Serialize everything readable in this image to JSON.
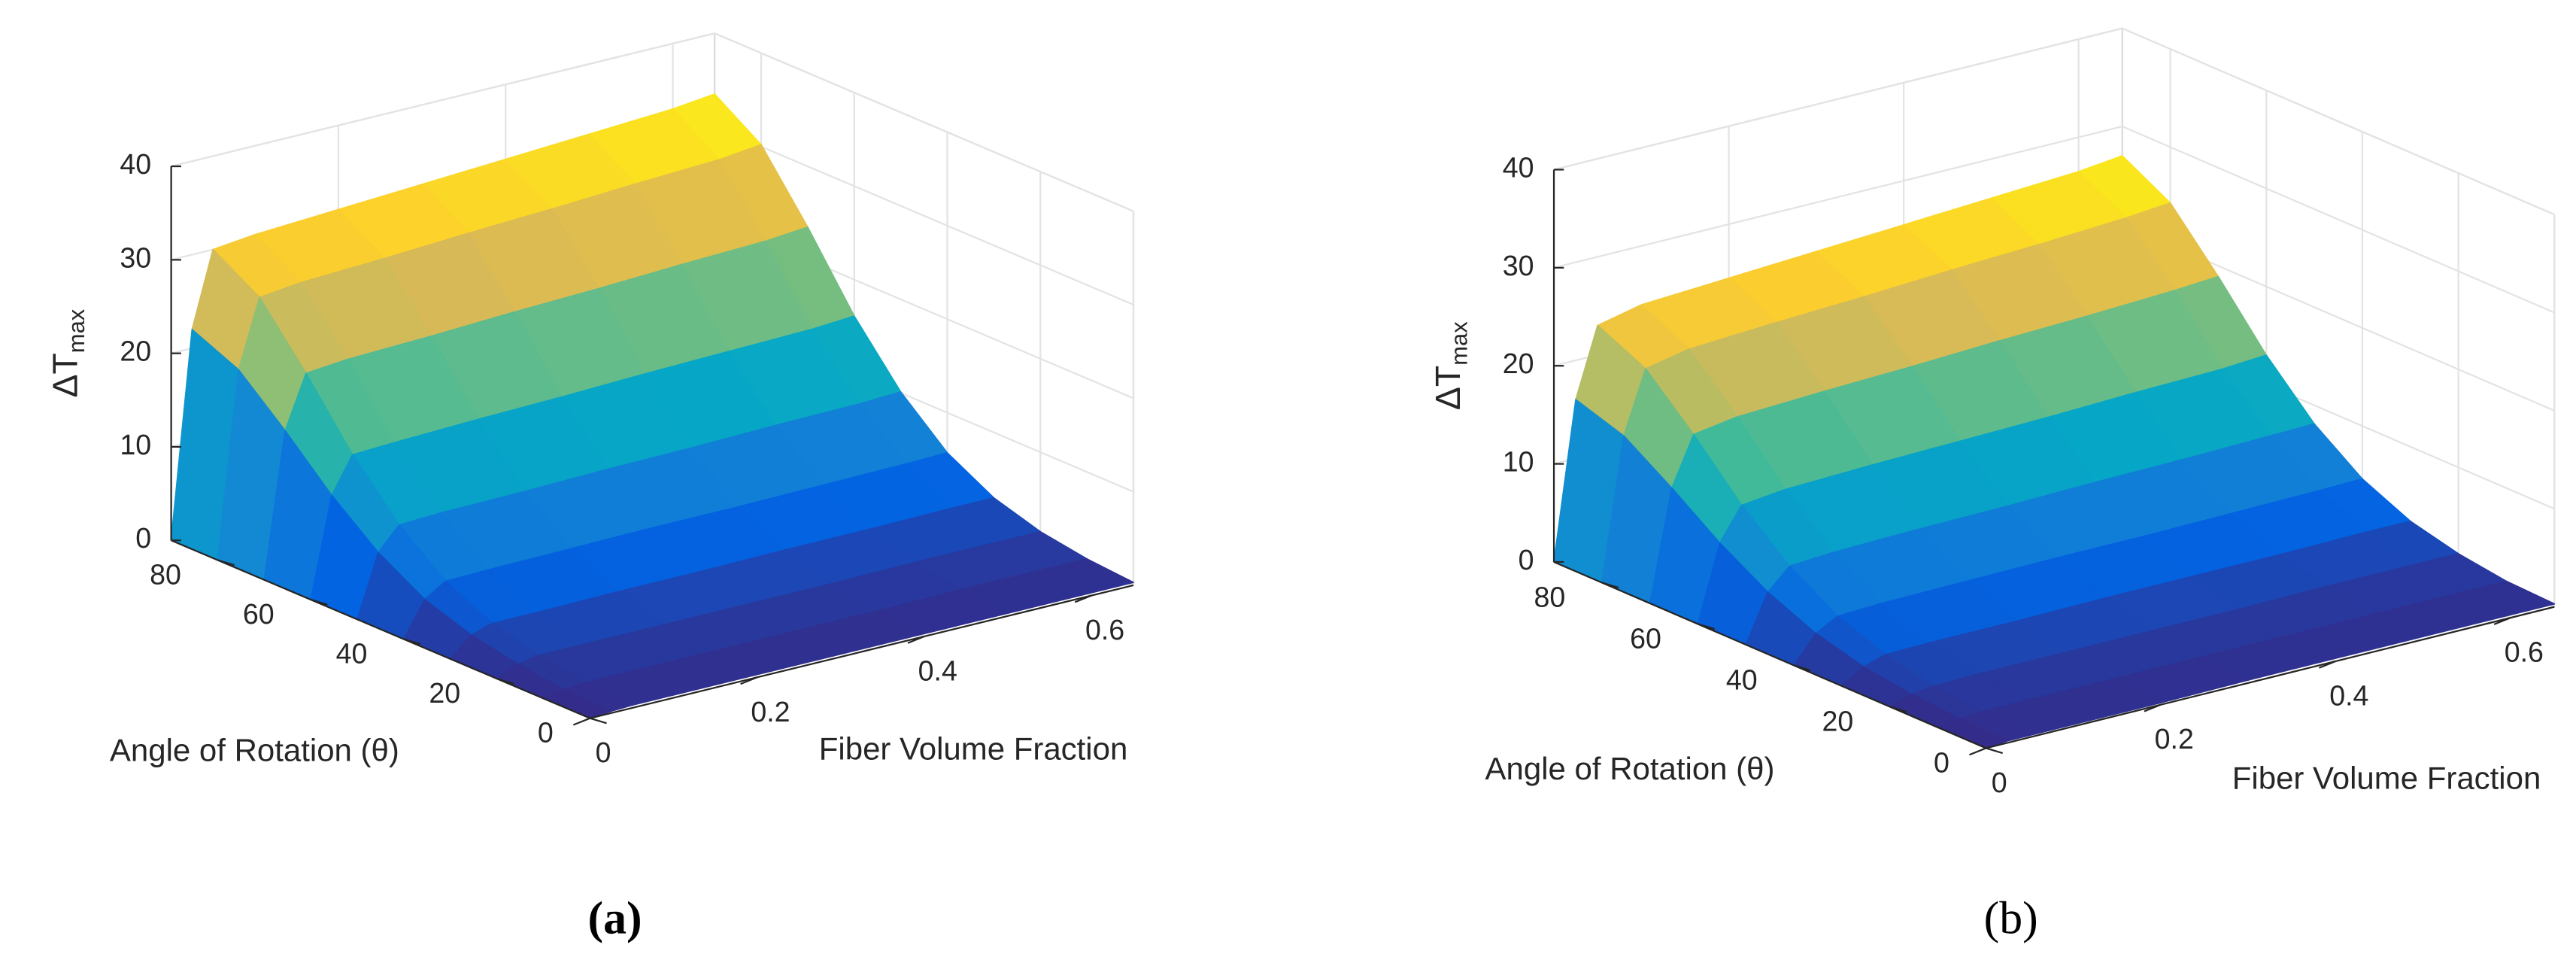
{
  "chart_data": [
    {
      "type": "surface",
      "panel_label": "(a)",
      "xlabel": "Fiber Volume Fraction",
      "ylabel": "Angle of Rotation (θ)",
      "zlabel": "ΔT",
      "zlabel_sub": "max",
      "x": [
        0,
        0.025,
        0.05,
        0.1,
        0.2,
        0.3,
        0.4,
        0.5,
        0.6,
        0.65
      ],
      "y": [
        0,
        10,
        20,
        30,
        40,
        50,
        60,
        70,
        80,
        90
      ],
      "z": [
        [
          0,
          0.2,
          0.3,
          0.3,
          0.3,
          0.3,
          0.3,
          0.3,
          0.3,
          0.3
        ],
        [
          0,
          0.4,
          0.6,
          0.6,
          0.6,
          0.6,
          0.6,
          0.7,
          0.7,
          0.7
        ],
        [
          0,
          1.0,
          1.4,
          1.4,
          1.4,
          1.4,
          1.4,
          1.5,
          1.5,
          1.5
        ],
        [
          0,
          2.0,
          2.7,
          2.7,
          2.8,
          2.8,
          2.9,
          2.9,
          3.0,
          3.0
        ],
        [
          0,
          3.7,
          5.1,
          5.2,
          5.3,
          5.4,
          5.4,
          5.5,
          5.6,
          5.7
        ],
        [
          0,
          6.6,
          9.0,
          9.2,
          9.3,
          9.5,
          9.6,
          9.8,
          9.9,
          10.1
        ],
        [
          0,
          10.6,
          14.4,
          14.6,
          14.9,
          15.1,
          15.4,
          15.6,
          15.8,
          16.1
        ],
        [
          0,
          15.4,
          21.0,
          21.4,
          21.7,
          22.1,
          22.4,
          22.8,
          23.1,
          23.5
        ],
        [
          0,
          19.8,
          27.0,
          27.5,
          27.9,
          28.4,
          28.8,
          29.3,
          29.7,
          30.2
        ],
        [
          0,
          22,
          30,
          30.5,
          31,
          31.5,
          32,
          32.5,
          33,
          33.5
        ]
      ],
      "xlim": [
        0,
        0.65
      ],
      "ylim": [
        0,
        90
      ],
      "zlim": [
        0,
        40
      ],
      "xticks": [
        0,
        0.2,
        0.4,
        0.6
      ],
      "yticks": [
        0,
        20,
        40,
        60,
        80
      ],
      "zticks": [
        0,
        10,
        20,
        30,
        40
      ],
      "grid": true,
      "colormap": [
        "#352a87",
        "#0363e1",
        "#1485d4",
        "#06a7c6",
        "#38b99e",
        "#92bf73",
        "#d9ba56",
        "#fcce2e",
        "#f9fb0e"
      ]
    },
    {
      "type": "surface",
      "panel_label": "(b)",
      "xlabel": "Fiber Volume Fraction",
      "ylabel": "Angle of Rotation (θ)",
      "zlabel": "ΔT",
      "zlabel_sub": "max",
      "x": [
        0,
        0.025,
        0.05,
        0.1,
        0.2,
        0.3,
        0.4,
        0.5,
        0.6,
        0.65
      ],
      "y": [
        0,
        10,
        20,
        30,
        40,
        50,
        60,
        70,
        80,
        90
      ],
      "z": [
        [
          0,
          0.2,
          0.2,
          0.2,
          0.2,
          0.3,
          0.3,
          0.3,
          0.3,
          0.3
        ],
        [
          0,
          0.3,
          0.5,
          0.5,
          0.5,
          0.5,
          0.5,
          0.5,
          0.5,
          0.5
        ],
        [
          0,
          0.7,
          1.0,
          1.1,
          1.1,
          1.1,
          1.1,
          1.2,
          1.2,
          1.2
        ],
        [
          0,
          1.4,
          2.1,
          2.2,
          2.2,
          2.3,
          2.3,
          2.3,
          2.4,
          2.4
        ],
        [
          0,
          2.7,
          3.9,
          4.1,
          4.2,
          4.3,
          4.3,
          4.4,
          4.5,
          4.6
        ],
        [
          0,
          4.8,
          6.9,
          7.2,
          7.4,
          7.5,
          7.7,
          7.8,
          8.0,
          8.1
        ],
        [
          0,
          7.7,
          11.0,
          11.5,
          11.8,
          12.0,
          12.2,
          12.5,
          12.7,
          13.0
        ],
        [
          0,
          11.2,
          16.1,
          16.8,
          17.2,
          17.5,
          17.9,
          18.2,
          18.6,
          18.9
        ],
        [
          0,
          14.4,
          20.7,
          21.6,
          22.1,
          22.5,
          23.0,
          23.4,
          23.9,
          24.3
        ],
        [
          0,
          16,
          23,
          24,
          24.5,
          25,
          25.5,
          26,
          26.5,
          27
        ]
      ],
      "xlim": [
        0,
        0.65
      ],
      "ylim": [
        0,
        90
      ],
      "zlim": [
        0,
        40
      ],
      "xticks": [
        0,
        0.2,
        0.4,
        0.6
      ],
      "yticks": [
        0,
        20,
        40,
        60,
        80
      ],
      "zticks": [
        0,
        10,
        20,
        30,
        40
      ],
      "grid": true,
      "colormap": [
        "#352a87",
        "#0363e1",
        "#1485d4",
        "#06a7c6",
        "#38b99e",
        "#92bf73",
        "#d9ba56",
        "#fcce2e",
        "#f9fb0e"
      ]
    }
  ]
}
